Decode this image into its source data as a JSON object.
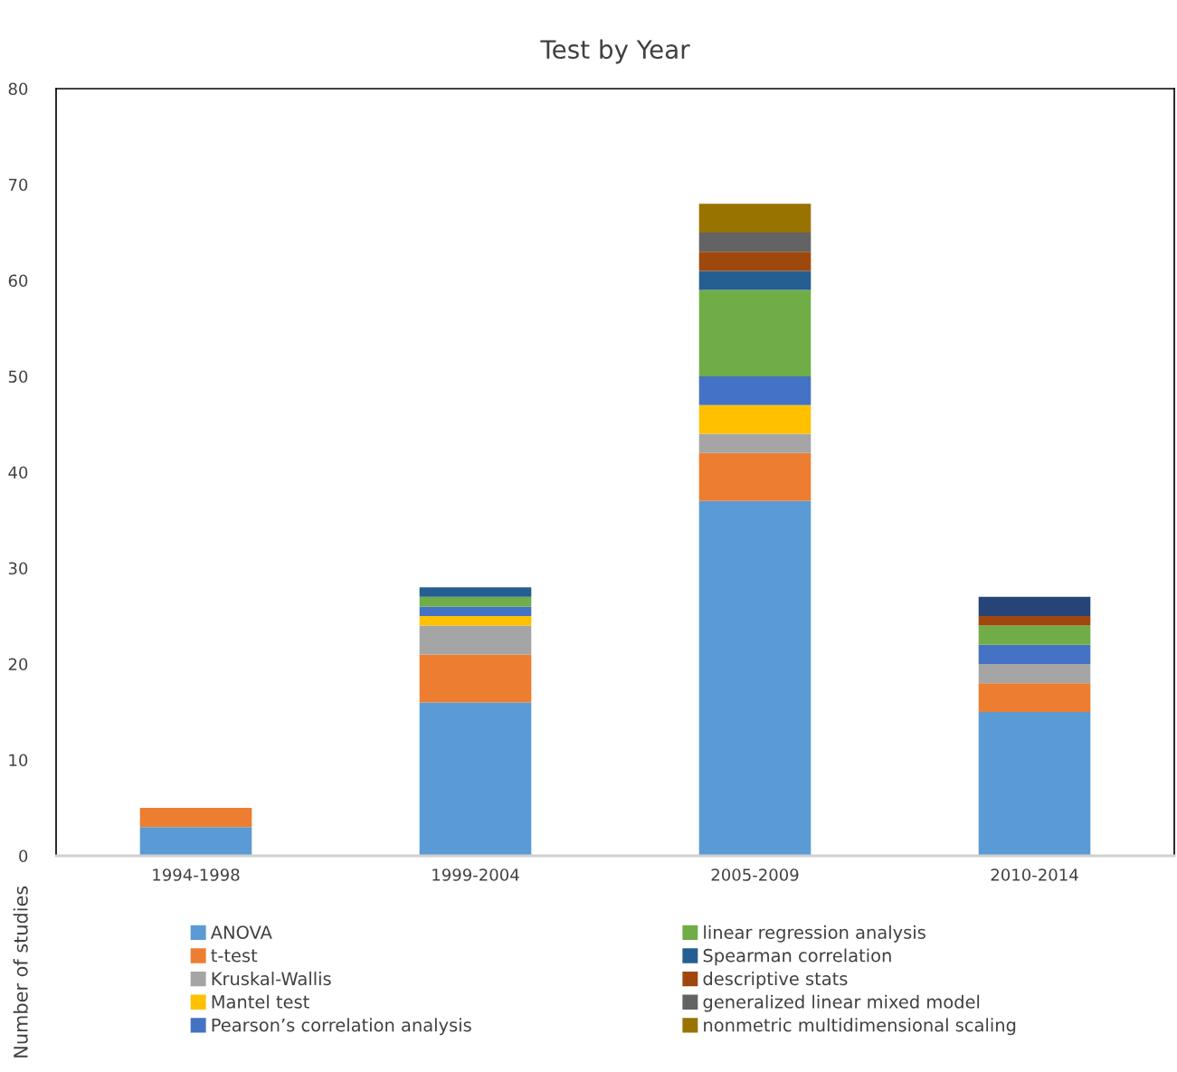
{
  "chart_data": {
    "type": "bar",
    "title": "Test by Year",
    "ylabel": "Number of studies",
    "stacked": true,
    "categories": [
      "1994-1998",
      "1999-2004",
      "2005-2009",
      "2010-2014"
    ],
    "series": [
      {
        "name": "ANOVA",
        "color": "#5b9bd5",
        "values": [
          3,
          16,
          37,
          15
        ]
      },
      {
        "name": "t-test",
        "color": "#ed7d31",
        "values": [
          2,
          5,
          5,
          3
        ]
      },
      {
        "name": "Kruskal-Wallis",
        "color": "#a5a5a5",
        "values": [
          0,
          3,
          2,
          2
        ]
      },
      {
        "name": "Mantel test",
        "color": "#ffc000",
        "values": [
          0,
          1,
          3,
          0
        ]
      },
      {
        "name": "Pearson’s correlation analysis",
        "color": "#4472c4",
        "values": [
          0,
          1,
          3,
          2
        ]
      },
      {
        "name": "linear regression analysis",
        "color": "#70ad47",
        "values": [
          0,
          1,
          9,
          2
        ]
      },
      {
        "name": "Spearman correlation",
        "color": "#255e91",
        "values": [
          0,
          1,
          2,
          0
        ]
      },
      {
        "name": "descriptive stats",
        "color": "#9e480e",
        "values": [
          0,
          0,
          2,
          1
        ]
      },
      {
        "name": "generalized linear mixed model",
        "color": "#636363",
        "values": [
          0,
          0,
          2,
          0
        ]
      },
      {
        "name": "nonmetric multidimensional scaling",
        "color": "#997300",
        "values": [
          0,
          0,
          3,
          0
        ]
      },
      {
        "color": "#264478",
        "values": [
          0,
          0,
          0,
          2
        ]
      }
    ],
    "ylim": [
      0,
      80
    ],
    "yticks": [
      0,
      10,
      20,
      30,
      40,
      50,
      60,
      70,
      80
    ],
    "grid": false,
    "legend": "bottom"
  }
}
